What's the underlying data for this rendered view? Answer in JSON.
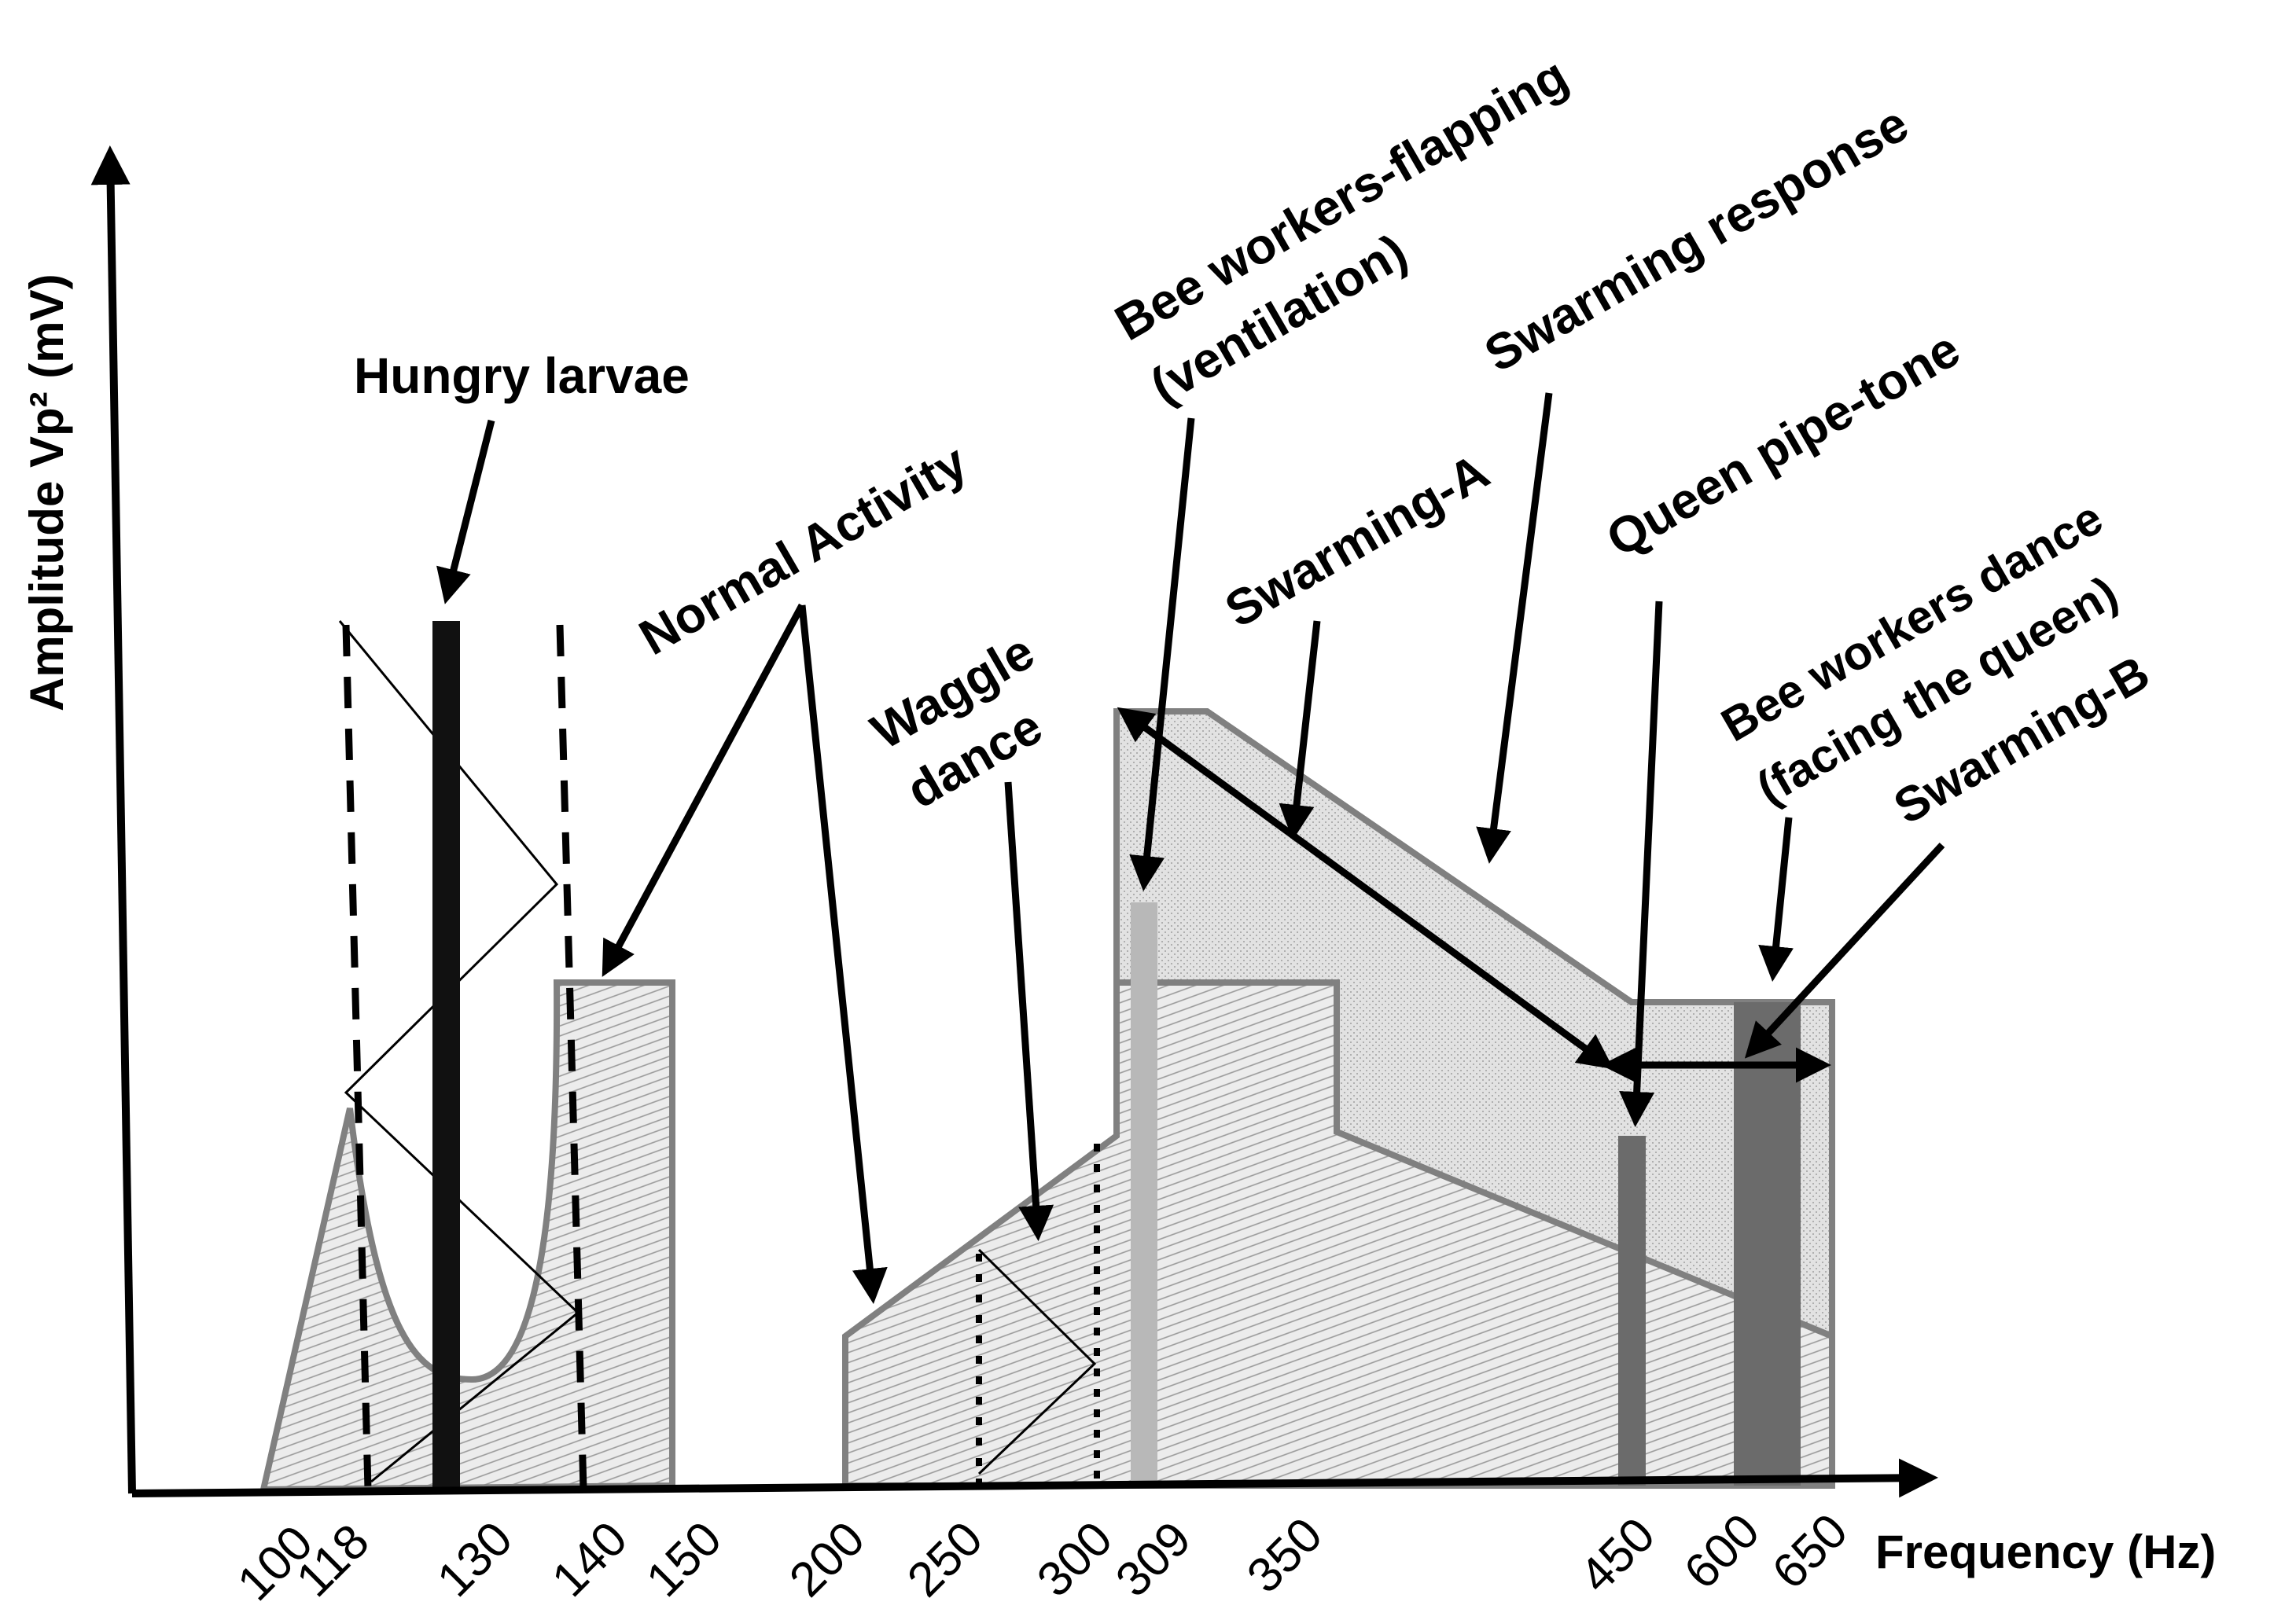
{
  "axes": {
    "y_label": "Amplitude Vp² (mV)",
    "x_label": "Frequency (Hz)"
  },
  "x_ticks": [
    "100",
    "118",
    "130",
    "140",
    "150",
    "200",
    "250",
    "300",
    "309",
    "350",
    "450",
    "600",
    "650"
  ],
  "annotations": {
    "hungry_larvae": "Hungry larvae",
    "normal_activity": "Normal Activity",
    "waggle_dance_1": "Waggle",
    "waggle_dance_2": "dance",
    "bee_workers_flapping_1": "Bee workers-flapping",
    "bee_workers_flapping_2": "(ventilation)",
    "swarming_response": "Swarming response",
    "swarming_a": "Swarming-A",
    "queen_pipe_tone": "Queen pipe-tone",
    "bee_workers_dance_1": "Bee workers dance",
    "bee_workers_dance_2": "(facing the queen)",
    "swarming_b": "Swarming-B"
  },
  "colors": {
    "axis": "#000000",
    "region_fill": "#ececec",
    "region_edge": "#808080",
    "hungry_larvae_bar": "#111111",
    "flapping_bar": "#b8b8b8",
    "queen_bar": "#6b6b6b",
    "dance_bar": "#6b6b6b"
  }
}
